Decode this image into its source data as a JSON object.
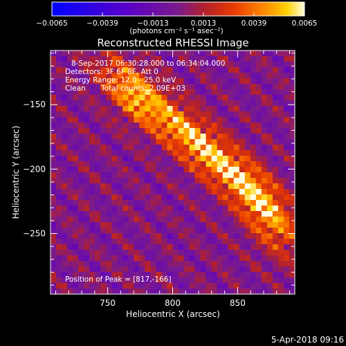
{
  "chart_data": {
    "type": "heatmap",
    "title": "Reconstructed RHESSI Image",
    "xlabel": "Heliocentric X (arcsec)",
    "ylabel": "Heliocentric Y (arcsec)",
    "xlim": [
      706,
      894
    ],
    "ylim": [
      -297,
      -108
    ],
    "x_ticks": [
      750,
      800,
      850
    ],
    "y_ticks": [
      -150,
      -200,
      -250
    ],
    "colorbar": {
      "range": [
        -0.0065,
        0.0065
      ],
      "tick_values": [
        -0.0065,
        -0.0039,
        -0.0013,
        0.0013,
        0.0039,
        0.0065
      ],
      "tick_labels": [
        "−0.0065",
        "−0.0039",
        "−0.0013",
        "0.0013",
        "0.0039",
        "0.0065"
      ],
      "unit_label": "(photons cm⁻² s⁻¹ asec⁻²)"
    },
    "annotations": [
      "8-Sep-2017 06:30:28.000 to 06:34:04.000",
      "Detectors: 3F 6F 8F, Att 0",
      "Energy Range: 12.0 - 25.0 keV",
      "Clean",
      "Total counts: 2.09E+03"
    ],
    "peak_label": "Position of Peak = [817,-166]",
    "peak": [
      817,
      -166
    ],
    "sources": [
      {
        "x": 826,
        "y": -186,
        "amp": 0.0074,
        "sigma_along": 48,
        "sigma_across": 11,
        "angle_deg": -42
      },
      {
        "x": 768,
        "y": -141,
        "amp": 0.0048,
        "sigma_along": 22,
        "sigma_across": 11,
        "angle_deg": -50
      },
      {
        "x": 872,
        "y": -235,
        "amp": 0.0046,
        "sigma_along": 26,
        "sigma_across": 12,
        "angle_deg": -60
      }
    ],
    "grid": false
  },
  "footer": {
    "timestamp": "5-Apr-2018 09:16"
  },
  "colors": {
    "background": "#000000",
    "foreground": "#ffffff",
    "colormap": [
      "#0000ff",
      "#5a00c8",
      "#7a1a8c",
      "#b02030",
      "#e83a00",
      "#ff8a00",
      "#ffd000",
      "#ffffe0"
    ]
  }
}
